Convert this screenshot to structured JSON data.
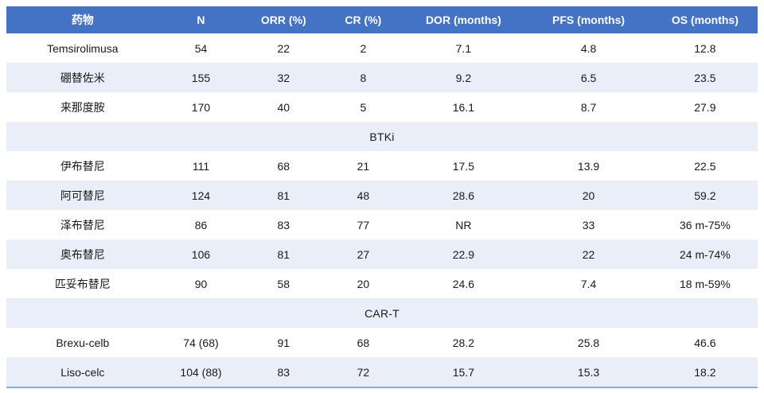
{
  "table": {
    "columns": [
      "药物",
      "N",
      "ORR (%)",
      "CR (%)",
      "DOR (months)",
      "PFS (months)",
      "OS (months)"
    ],
    "rows": [
      {
        "type": "data",
        "cells": [
          "Temsirolimusa",
          "54",
          "22",
          "2",
          "7.1",
          "4.8",
          "12.8"
        ]
      },
      {
        "type": "data",
        "cells": [
          "硼替佐米",
          "155",
          "32",
          "8",
          "9.2",
          "6.5",
          "23.5"
        ]
      },
      {
        "type": "data",
        "cells": [
          "来那度胺",
          "170",
          "40",
          "5",
          "16.1",
          "8.7",
          "27.9"
        ]
      },
      {
        "type": "section",
        "label": "BTKi"
      },
      {
        "type": "data",
        "cells": [
          "伊布替尼",
          "111",
          "68",
          "21",
          "17.5",
          "13.9",
          "22.5"
        ]
      },
      {
        "type": "data",
        "cells": [
          "阿可替尼",
          "124",
          "81",
          "48",
          "28.6",
          "20",
          "59.2"
        ]
      },
      {
        "type": "data",
        "cells": [
          "泽布替尼",
          "86",
          "83",
          "77",
          "NR",
          "33",
          "36 m-75%"
        ]
      },
      {
        "type": "data",
        "cells": [
          "奥布替尼",
          "106",
          "81",
          "27",
          "22.9",
          "22",
          "24 m-74%"
        ]
      },
      {
        "type": "data",
        "cells": [
          "匹妥布替尼",
          "90",
          "58",
          "20",
          "24.6",
          "7.4",
          "18 m-59%"
        ]
      },
      {
        "type": "section",
        "label": "CAR-T"
      },
      {
        "type": "data",
        "cells": [
          "Brexu-celb",
          "74 (68)",
          "91",
          "68",
          "28.2",
          "25.8",
          "46.6"
        ]
      },
      {
        "type": "data",
        "cells": [
          "Liso-celc",
          "104 (88)",
          "83",
          "72",
          "15.7",
          "15.3",
          "18.2"
        ]
      }
    ],
    "colors": {
      "header_bg": "#4472C4",
      "header_text": "#FFFFFF",
      "row_bg": "#FFFFFF",
      "row_alt_bg": "#E9EEF8",
      "body_text": "#1A1A1A",
      "bottom_border": "#8EA9DB"
    }
  }
}
